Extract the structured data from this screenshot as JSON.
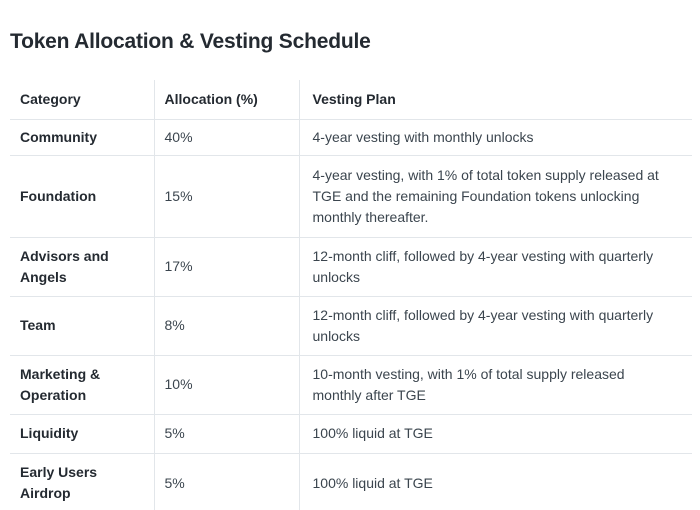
{
  "page": {
    "title": "Token Allocation & Vesting Schedule"
  },
  "colors": {
    "background": "#ffffff",
    "heading_text": "#242a31",
    "body_text": "#3b454e",
    "table_border": "#e2e6ea"
  },
  "table": {
    "columns": [
      "Category",
      "Allocation (%)",
      "Vesting Plan"
    ],
    "rows": [
      {
        "category": "Community",
        "allocation": "40%",
        "vesting": "4-year vesting with monthly unlocks"
      },
      {
        "category": "Foundation",
        "allocation": "15%",
        "vesting": "4-year vesting, with 1% of total token supply released at TGE and the remaining Foundation tokens unlocking monthly thereafter."
      },
      {
        "category": "Advisors and Angels",
        "allocation": "17%",
        "vesting": "12-month cliff, followed by 4-year vesting with quarterly unlocks"
      },
      {
        "category": "Team",
        "allocation": "8%",
        "vesting": "12-month cliff, followed by 4-year vesting with quarterly unlocks"
      },
      {
        "category": "Marketing & Operation",
        "allocation": "10%",
        "vesting": "10-month vesting, with 1% of total supply released monthly after TGE"
      },
      {
        "category": "Liquidity",
        "allocation": "5%",
        "vesting": "100% liquid at TGE"
      },
      {
        "category": "Early Users Airdrop",
        "allocation": "5%",
        "vesting": "100% liquid at TGE"
      }
    ]
  }
}
